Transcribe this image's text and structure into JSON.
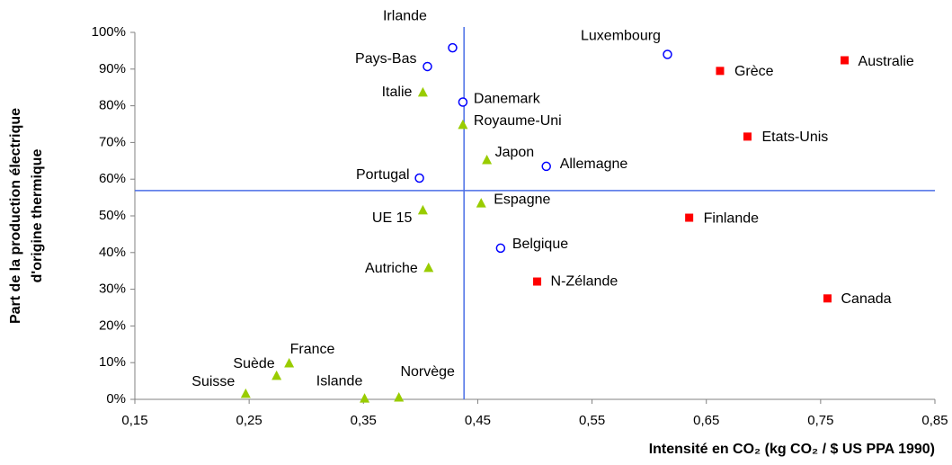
{
  "chart_data": {
    "type": "scatter",
    "x_label": "Intensité en CO₂ (kg CO₂ / $ US PPA 1990)",
    "y_label": [
      "Part de la production électrique",
      "d'origine thermique"
    ],
    "xlim": [
      0.15,
      0.85
    ],
    "ylim": [
      0,
      100
    ],
    "xticks": [
      {
        "value": 0.15,
        "label": "0,15"
      },
      {
        "value": 0.25,
        "label": "0,25"
      },
      {
        "value": 0.35,
        "label": "0,35"
      },
      {
        "value": 0.45,
        "label": "0,45"
      },
      {
        "value": 0.55,
        "label": "0,55"
      },
      {
        "value": 0.65,
        "label": "0,65"
      },
      {
        "value": 0.75,
        "label": "0,75"
      },
      {
        "value": 0.85,
        "label": "0,85"
      }
    ],
    "yticks": [
      {
        "value": 0,
        "label": "0%"
      },
      {
        "value": 10,
        "label": "10%"
      },
      {
        "value": 20,
        "label": "20%"
      },
      {
        "value": 30,
        "label": "30%"
      },
      {
        "value": 40,
        "label": "40%"
      },
      {
        "value": 50,
        "label": "50%"
      },
      {
        "value": 60,
        "label": "60%"
      },
      {
        "value": 70,
        "label": "70%"
      },
      {
        "value": 80,
        "label": "80%"
      },
      {
        "value": 90,
        "label": "90%"
      },
      {
        "value": 100,
        "label": "100%"
      }
    ],
    "grid": false,
    "reference_lines": {
      "x": 0.438,
      "y": 56.9,
      "color": "#4a6ee6"
    },
    "series": [
      {
        "marker": "circle",
        "color": "#0000ff",
        "labels": [
          "Irlande",
          "Pays-Bas",
          "Danemark",
          "Luxembourg",
          "Portugal",
          "Allemagne",
          "Belgique"
        ],
        "x": [
          0.428,
          0.406,
          0.437,
          0.616,
          0.399,
          0.51,
          0.47
        ],
        "values": [
          95.8,
          90.7,
          81,
          94,
          60.3,
          63.5,
          41.2
        ]
      },
      {
        "marker": "square",
        "color": "#ff0000",
        "labels": [
          "Grèce",
          "Australie",
          "Etats-Unis",
          "Finlande",
          "N-Zélande",
          "Canada"
        ],
        "x": [
          0.662,
          0.771,
          0.686,
          0.635,
          0.502,
          0.756
        ],
        "values": [
          89.5,
          92.4,
          71.6,
          49.5,
          32.1,
          27.5
        ]
      },
      {
        "marker": "triangle",
        "color": "#99cc00",
        "labels": [
          "Italie",
          "Royaume-Uni",
          "Japon",
          "Espagne",
          "UE 15",
          "Autriche",
          "France",
          "Suède",
          "Suisse",
          "Islande",
          "Norvège"
        ],
        "x": [
          0.402,
          0.437,
          0.458,
          0.453,
          0.402,
          0.407,
          0.285,
          0.274,
          0.247,
          0.351,
          0.381
        ],
        "values": [
          83.6,
          74.8,
          65.2,
          53.4,
          51.5,
          35.8,
          9.8,
          6.4,
          1.5,
          0.2,
          0.5
        ]
      }
    ]
  }
}
